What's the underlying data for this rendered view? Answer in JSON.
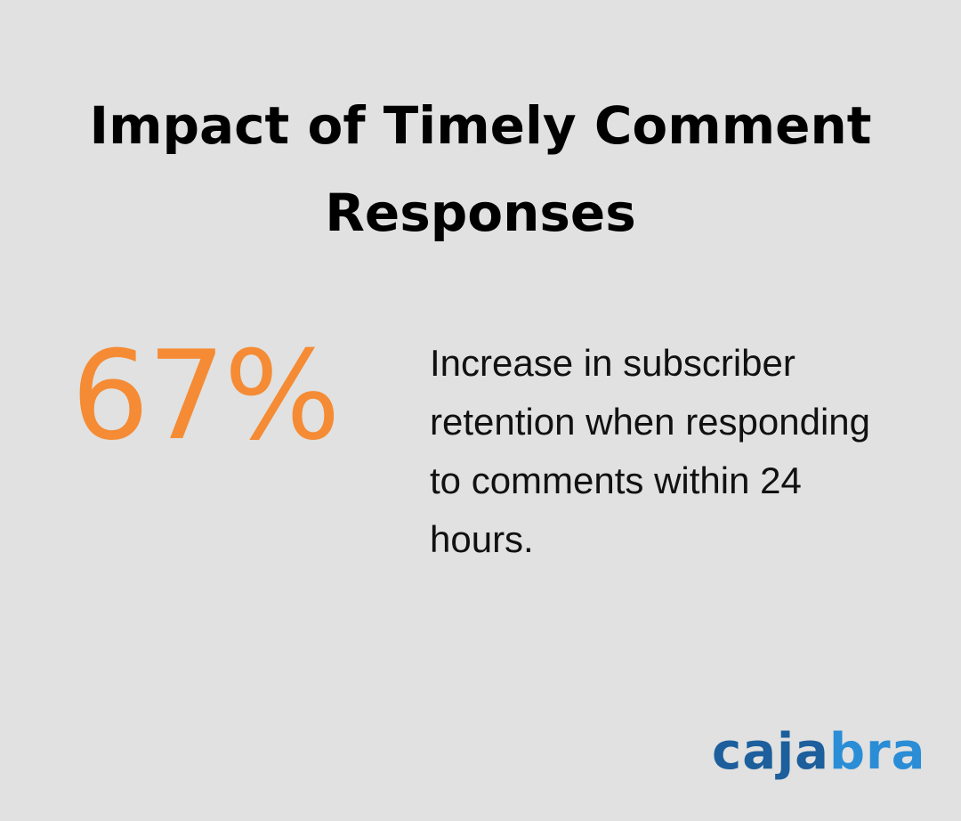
{
  "header": {
    "title": "Impact of Timely Comment Responses"
  },
  "stat": {
    "value": "67%",
    "description": "Increase in subscriber retention when responding to comments within 24 hours."
  },
  "footer": {
    "brand": "cajabra"
  }
}
